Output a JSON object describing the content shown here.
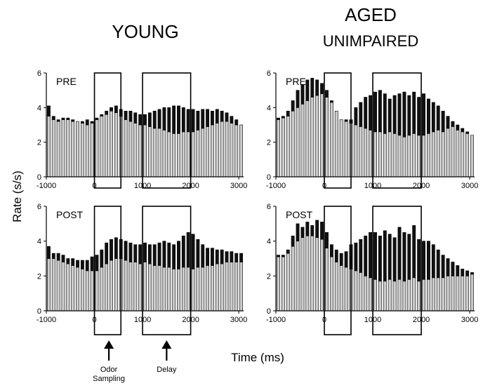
{
  "figure": {
    "col_titles": [
      {
        "lines": [
          "YOUNG"
        ]
      },
      {
        "lines": [
          "AGED",
          "UNIMPAIRED"
        ]
      }
    ],
    "ylabel": "Rate (s/s)",
    "xlabel": "Time (ms)",
    "markers": [
      {
        "x": 300,
        "lines": [
          "Odor",
          "Sampling"
        ]
      },
      {
        "x": 1500,
        "lines": [
          "Delay"
        ]
      }
    ],
    "windows": [
      [
        0,
        550
      ],
      [
        1000,
        2000
      ]
    ],
    "colors": {
      "background": "#ffffff",
      "bar_fill": "#cccccc",
      "top_fill": "#111111",
      "outline": "#000000"
    }
  },
  "chart_data": [
    {
      "type": "bar",
      "name": "young-pre",
      "label": "PRE",
      "x_start": -1000,
      "x_step": 100,
      "xticks": [
        -1000,
        0,
        1000,
        2000,
        3000
      ],
      "xlim": [
        -1000,
        3100
      ],
      "yticks": [
        0,
        2,
        4,
        6
      ],
      "ylim": [
        0,
        6
      ],
      "lower": [
        3.5,
        3.3,
        3.2,
        3.3,
        3.3,
        3.2,
        3.2,
        3.1,
        3.0,
        3.1,
        3.3,
        3.5,
        3.6,
        3.8,
        3.7,
        3.5,
        3.3,
        3.2,
        3.1,
        3.0,
        3.0,
        2.9,
        2.8,
        2.8,
        2.7,
        2.6,
        2.5,
        2.5,
        2.6,
        2.6,
        2.6,
        2.7,
        2.8,
        2.9,
        3.0,
        3.1,
        3.2,
        3.2,
        3.1,
        3.0,
        3.0
      ],
      "upper": [
        4.1,
        3.5,
        3.3,
        3.4,
        3.4,
        3.3,
        3.2,
        3.2,
        3.3,
        3.2,
        3.4,
        3.6,
        3.8,
        4.0,
        4.1,
        3.9,
        3.8,
        3.8,
        3.7,
        3.6,
        3.6,
        3.7,
        3.8,
        3.9,
        4.0,
        4.0,
        4.1,
        4.1,
        4.0,
        3.9,
        3.9,
        3.8,
        3.9,
        3.9,
        3.8,
        3.9,
        3.8,
        3.7,
        3.5,
        3.3,
        3.0
      ]
    },
    {
      "type": "bar",
      "name": "aged-pre",
      "label": "PRE",
      "x_start": -1000,
      "x_step": 100,
      "xticks": [
        -1000,
        0,
        1000,
        2000,
        3000
      ],
      "xlim": [
        -1000,
        3100
      ],
      "yticks": [
        0,
        2,
        4,
        6
      ],
      "ylim": [
        0,
        6
      ],
      "lower": [
        3.3,
        3.4,
        3.5,
        3.8,
        4.0,
        4.2,
        4.4,
        4.6,
        4.7,
        4.8,
        4.6,
        4.3,
        3.8,
        3.3,
        3.2,
        3.1,
        3.0,
        2.9,
        2.8,
        2.7,
        2.6,
        2.6,
        2.5,
        2.6,
        2.5,
        2.4,
        2.3,
        2.4,
        2.5,
        2.4,
        2.4,
        2.5,
        2.6,
        2.7,
        2.6,
        2.8,
        2.9,
        2.7,
        2.6,
        2.5,
        2.4
      ],
      "upper": [
        3.4,
        3.5,
        3.8,
        4.4,
        5.0,
        5.3,
        5.6,
        5.7,
        5.6,
        5.4,
        5.0,
        4.4,
        3.8,
        3.3,
        3.3,
        3.3,
        4.0,
        4.3,
        4.6,
        4.7,
        4.9,
        5.0,
        4.8,
        4.5,
        4.7,
        4.8,
        4.9,
        4.7,
        4.9,
        4.6,
        4.8,
        4.5,
        4.3,
        4.1,
        3.8,
        3.5,
        3.2,
        3.0,
        2.8,
        2.6,
        2.4
      ]
    },
    {
      "type": "bar",
      "name": "young-post",
      "label": "POST",
      "x_start": -1000,
      "x_step": 100,
      "xticks": [
        -1000,
        0,
        1000,
        2000,
        3000
      ],
      "xlim": [
        -1000,
        3100
      ],
      "yticks": [
        0,
        2,
        4,
        6
      ],
      "ylim": [
        0,
        6
      ],
      "lower": [
        3.0,
        3.0,
        2.9,
        2.8,
        2.7,
        2.6,
        2.5,
        2.4,
        2.3,
        2.3,
        2.3,
        2.5,
        2.7,
        2.9,
        3.0,
        3.0,
        2.9,
        2.8,
        2.8,
        2.7,
        2.8,
        2.7,
        2.6,
        2.6,
        2.5,
        2.5,
        2.4,
        2.4,
        2.5,
        2.5,
        2.4,
        2.5,
        2.5,
        2.6,
        2.6,
        2.7,
        2.7,
        2.8,
        2.8,
        2.8,
        2.8
      ],
      "upper": [
        3.7,
        3.3,
        3.3,
        3.2,
        3.0,
        3.0,
        2.9,
        2.9,
        2.9,
        3.1,
        3.2,
        3.5,
        3.9,
        4.1,
        4.2,
        4.1,
        4.0,
        3.9,
        3.8,
        3.8,
        3.9,
        3.8,
        3.8,
        3.9,
        4.0,
        3.9,
        3.8,
        4.0,
        4.3,
        4.5,
        4.4,
        4.1,
        3.8,
        3.6,
        3.6,
        3.5,
        3.5,
        3.4,
        3.4,
        3.3,
        3.3
      ]
    },
    {
      "type": "bar",
      "name": "aged-post",
      "label": "POST",
      "x_start": -1000,
      "x_step": 100,
      "xticks": [
        -1000,
        0,
        1000,
        2000,
        3000
      ],
      "xlim": [
        -1000,
        3100
      ],
      "yticks": [
        0,
        2,
        4,
        6
      ],
      "ylim": [
        0,
        6
      ],
      "lower": [
        3.1,
        3.1,
        3.3,
        3.7,
        4.0,
        4.2,
        4.3,
        4.3,
        4.2,
        4.1,
        3.6,
        3.1,
        2.8,
        2.6,
        2.5,
        2.4,
        2.3,
        2.2,
        2.0,
        1.9,
        1.8,
        1.7,
        1.7,
        1.8,
        1.7,
        1.8,
        1.7,
        1.8,
        1.9,
        1.7,
        1.8,
        1.8,
        1.9,
        1.9,
        1.9,
        2.0,
        2.0,
        2.0,
        2.0,
        2.0,
        2.1
      ],
      "upper": [
        3.2,
        3.2,
        3.5,
        4.3,
        5.0,
        4.8,
        5.1,
        4.9,
        5.2,
        5.1,
        4.5,
        3.8,
        3.5,
        3.3,
        3.4,
        3.8,
        3.9,
        4.1,
        4.3,
        4.5,
        4.5,
        4.3,
        4.6,
        4.4,
        4.2,
        4.8,
        4.5,
        4.4,
        4.9,
        4.1,
        4.0,
        4.0,
        3.8,
        3.5,
        3.2,
        3.0,
        2.8,
        2.6,
        2.4,
        2.3,
        2.2
      ]
    }
  ]
}
